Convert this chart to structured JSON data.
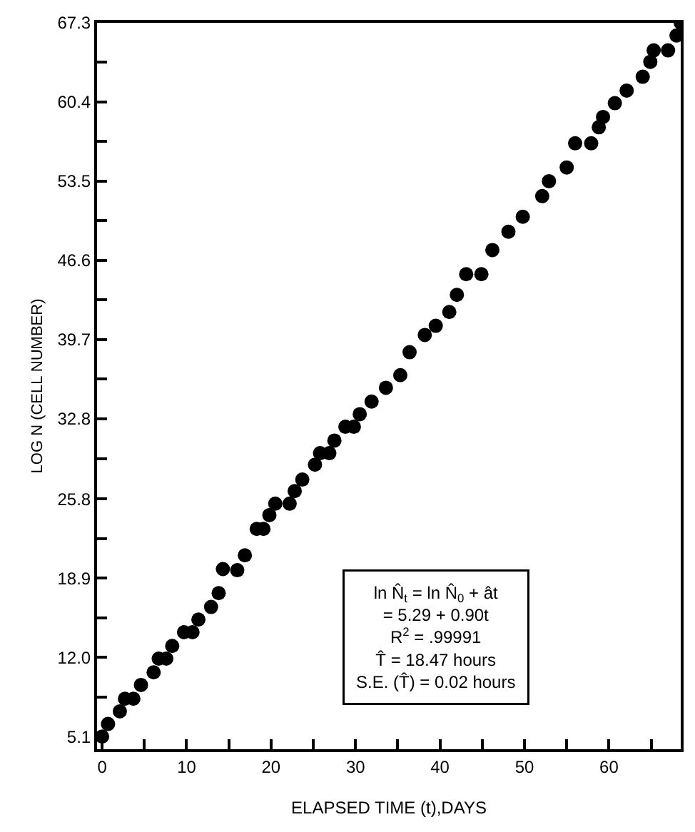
{
  "chart_data": {
    "type": "scatter",
    "xlabel": "ELAPSED TIME (t),DAYS",
    "ylabel": "LOG N (CELL NUMBER)",
    "x": [
      0,
      0.7,
      2.1,
      2.7,
      3.7,
      4.6,
      6.1,
      6.7,
      7.6,
      8.3,
      9.7,
      10.7,
      11.4,
      12.9,
      13.8,
      14.3,
      16.0,
      16.9,
      18.3,
      19.1,
      19.8,
      20.5,
      22.2,
      22.8,
      23.7,
      25.2,
      25.8,
      26.9,
      27.5,
      28.8,
      29.8,
      30.5,
      31.9,
      33.6,
      35.3,
      36.4,
      38.2,
      39.5,
      41.1,
      42.0,
      43.1,
      44.9,
      46.2,
      48.1,
      49.8,
      52.1,
      52.9,
      55.0,
      56.0,
      57.9,
      58.8,
      59.3,
      60.7,
      62.1,
      64.0,
      64.9,
      65.3,
      67.0,
      68.0,
      68.5
    ],
    "series": [
      {
        "color": "#000000",
        "values": [
          5.1,
          6.2,
          7.3,
          8.4,
          8.4,
          9.6,
          10.7,
          11.9,
          11.9,
          13.0,
          14.2,
          14.2,
          15.3,
          16.4,
          17.6,
          19.7,
          19.6,
          20.9,
          23.2,
          23.2,
          24.4,
          25.4,
          25.4,
          26.5,
          27.5,
          28.8,
          29.8,
          29.8,
          30.9,
          32.1,
          32.1,
          33.2,
          34.3,
          35.5,
          36.6,
          38.6,
          40.1,
          40.9,
          42.1,
          43.6,
          45.4,
          45.4,
          47.5,
          49.1,
          50.4,
          52.2,
          53.5,
          54.7,
          56.8,
          56.8,
          58.2,
          59.1,
          60.3,
          61.4,
          62.6,
          63.9,
          64.9,
          64.9,
          66.2,
          67.3
        ]
      }
    ],
    "marker": "circle",
    "xlim": [
      -0.6,
      68.5
    ],
    "ylim": [
      4.0,
      67.3
    ],
    "xticks": [
      0,
      {
        "value": 5,
        "label": null
      },
      10,
      {
        "value": 15,
        "label": null
      },
      20,
      {
        "value": 25,
        "label": null
      },
      30,
      {
        "value": 35,
        "label": null
      },
      40,
      {
        "value": 45,
        "label": null
      },
      50,
      {
        "value": 55,
        "label": null
      },
      60,
      {
        "value": 65,
        "label": null
      }
    ],
    "yticks": [
      5.1,
      {
        "value": 8.55,
        "label": null
      },
      "12.0",
      {
        "value": 15.45,
        "label": null
      },
      18.9,
      {
        "value": 22.35,
        "label": null
      },
      25.8,
      {
        "value": 29.3,
        "label": null
      },
      32.8,
      {
        "value": 36.25,
        "label": null
      },
      39.7,
      {
        "value": 43.15,
        "label": null
      },
      46.6,
      {
        "value": 50.05,
        "label": null
      },
      53.5,
      {
        "value": 56.95,
        "label": null
      },
      60.4,
      {
        "value": 63.85,
        "label": null
      },
      67.3
    ],
    "annotations": [
      "ln N̂$_{t}$ = ln N̂$_{0}$ + ât\n= 5.29 + 0.90t\nR$^{2}$ = .99991\nT̂ = 18.47 hours\nS.E. (T̂) = 0.02 hours"
    ]
  }
}
